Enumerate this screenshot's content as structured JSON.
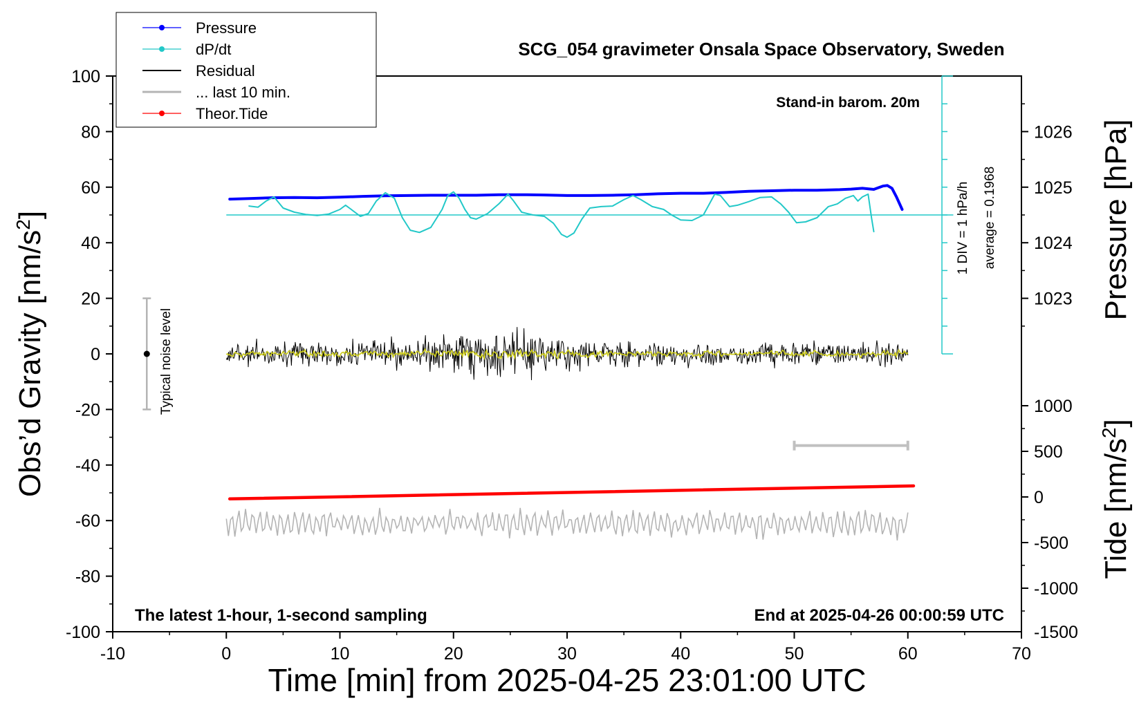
{
  "chart_data": {
    "type": "line",
    "title": "SCG_054 gravimeter Onsala Space Observatory, Sweden",
    "xlabel": "Time [min] from 2025-04-25 23:01:00 UTC",
    "xlim": [
      -10,
      70
    ],
    "x_ticks": [
      "-10",
      "0",
      "10",
      "20",
      "30",
      "40",
      "50",
      "60",
      "70"
    ],
    "y_left": {
      "label_prefix": "Obs’d Gravity [nm/s",
      "label_sup": "2",
      "label_suffix": "]",
      "lim": [
        -100,
        100
      ],
      "ticks": [
        "100",
        "80",
        "60",
        "40",
        "20",
        "0",
        "-20",
        "-40",
        "-60",
        "-80",
        "-100"
      ]
    },
    "y_right_pressure": {
      "label": "Pressure [hPa]",
      "ticks": [
        "1026",
        "1025",
        "1024",
        "1023"
      ],
      "note": "1 DIV = 1 hPa/h",
      "average": "average = 0.1968"
    },
    "y_right_tide": {
      "label_prefix": "Tide [nm/s",
      "label_sup": "2",
      "label_suffix": "]",
      "ticks": [
        "1000",
        "500",
        "0",
        "-500",
        "-1000",
        "-1500"
      ]
    },
    "legend": {
      "placement": "top-left",
      "entries": [
        {
          "name": "Pressure",
          "color": "#0000ff",
          "marker": true
        },
        {
          "name": "dP/dt",
          "color": "#22c8c8",
          "marker": true
        },
        {
          "name": "Residual",
          "color": "#000000",
          "marker": false
        },
        {
          "name": "... last 10 min.",
          "color": "#b4b4b4",
          "marker": false
        },
        {
          "name": "Theor.Tide",
          "color": "#ff0000",
          "marker": true
        }
      ]
    },
    "annotations": {
      "barometer": "Stand-in barom. 20m",
      "noise_label": "Typical noise level",
      "footer_left": "The latest 1-hour, 1-second sampling",
      "footer_right": "End at 2025-04-26 00:00:59 UTC"
    },
    "noise_bar": {
      "x": -7,
      "y_low": -20,
      "y_high": 20
    },
    "ten_min_bar": {
      "x_start": 50,
      "x_end": 60,
      "y": -33
    },
    "series": [
      {
        "name": "Pressure",
        "color": "#0000ff",
        "points": [
          [
            0.3,
            55.7
          ],
          [
            2,
            55.9
          ],
          [
            4,
            56.2
          ],
          [
            6,
            56.3
          ],
          [
            8,
            56.2
          ],
          [
            10,
            56.4
          ],
          [
            12,
            56.7
          ],
          [
            14,
            56.9
          ],
          [
            16,
            57.0
          ],
          [
            18,
            57.1
          ],
          [
            20,
            57.1
          ],
          [
            22,
            57.1
          ],
          [
            24,
            57.3
          ],
          [
            26,
            57.3
          ],
          [
            28,
            57.2
          ],
          [
            30,
            57.0
          ],
          [
            32,
            57.0
          ],
          [
            34,
            57.1
          ],
          [
            36,
            57.3
          ],
          [
            38,
            57.6
          ],
          [
            40,
            57.8
          ],
          [
            42,
            57.8
          ],
          [
            44,
            58.1
          ],
          [
            46,
            58.5
          ],
          [
            48,
            58.7
          ],
          [
            50,
            58.9
          ],
          [
            52,
            58.9
          ],
          [
            54,
            59.1
          ],
          [
            55,
            59.3
          ],
          [
            56,
            59.6
          ],
          [
            57,
            59.2
          ],
          [
            57.8,
            60.4
          ],
          [
            58.2,
            60.6
          ],
          [
            58.6,
            59.6
          ],
          [
            59.0,
            56.5
          ],
          [
            59.5,
            52.0
          ]
        ]
      },
      {
        "name": "dP/dt",
        "color": "#22c8c8",
        "points": [
          [
            2,
            53.2
          ],
          [
            2.8,
            52.8
          ],
          [
            3.5,
            55.0
          ],
          [
            4.2,
            56.5
          ],
          [
            5.0,
            52.5
          ],
          [
            6,
            51.0
          ],
          [
            7,
            50.2
          ],
          [
            8,
            49.8
          ],
          [
            9,
            50.3
          ],
          [
            10,
            52.0
          ],
          [
            10.5,
            53.5
          ],
          [
            11,
            52.0
          ],
          [
            11.8,
            49.5
          ],
          [
            12.5,
            50.5
          ],
          [
            13.2,
            55.0
          ],
          [
            14,
            58.0
          ],
          [
            14.8,
            56.0
          ],
          [
            15.5,
            49.0
          ],
          [
            16.2,
            44.5
          ],
          [
            17,
            43.7
          ],
          [
            18,
            45.5
          ],
          [
            19,
            52.0
          ],
          [
            19.5,
            57.0
          ],
          [
            20,
            58.3
          ],
          [
            20.5,
            56.0
          ],
          [
            21,
            52.0
          ],
          [
            21.5,
            49.0
          ],
          [
            22,
            48.5
          ],
          [
            23,
            50.5
          ],
          [
            24,
            54.0
          ],
          [
            24.8,
            57.5
          ],
          [
            25.3,
            55.0
          ],
          [
            26,
            51.0
          ],
          [
            27,
            50.0
          ],
          [
            28,
            49.5
          ],
          [
            28.8,
            47.0
          ],
          [
            29.5,
            43.0
          ],
          [
            30,
            42.0
          ],
          [
            30.6,
            43.5
          ],
          [
            31.3,
            48.5
          ],
          [
            32,
            52.5
          ],
          [
            33,
            53.0
          ],
          [
            34,
            53.2
          ],
          [
            35,
            55.5
          ],
          [
            35.8,
            57.0
          ],
          [
            36.5,
            55.5
          ],
          [
            37.5,
            53.0
          ],
          [
            38.5,
            52.0
          ],
          [
            39.2,
            50.0
          ],
          [
            40,
            48.2
          ],
          [
            41,
            48.0
          ],
          [
            42,
            50.0
          ],
          [
            43,
            57.5
          ],
          [
            43.5,
            57.0
          ],
          [
            44.3,
            53.0
          ],
          [
            45,
            53.5
          ],
          [
            46,
            54.8
          ],
          [
            47,
            56.3
          ],
          [
            48,
            56.5
          ],
          [
            48.8,
            54.0
          ],
          [
            49.5,
            51.0
          ],
          [
            50.2,
            47.2
          ],
          [
            51,
            47.5
          ],
          [
            52,
            49.0
          ],
          [
            53,
            53.0
          ],
          [
            53.8,
            54.0
          ],
          [
            54.5,
            56.0
          ],
          [
            55.2,
            57.0
          ],
          [
            55.6,
            55.0
          ],
          [
            56,
            56.5
          ],
          [
            56.5,
            57.5
          ],
          [
            56.8,
            49.0
          ],
          [
            57.0,
            44.0
          ]
        ]
      },
      {
        "name": "Theor.Tide",
        "color": "#ff0000",
        "points": [
          [
            0.3,
            -52.2
          ],
          [
            60.5,
            -47.5
          ]
        ]
      }
    ],
    "residual_x_range": [
      0,
      60
    ],
    "cyan_scale": {
      "x": 63,
      "y_top": 100,
      "y_bottom": 0,
      "baseline_y": 50,
      "baseline_x_start": 0,
      "baseline_x_end": 64
    }
  }
}
